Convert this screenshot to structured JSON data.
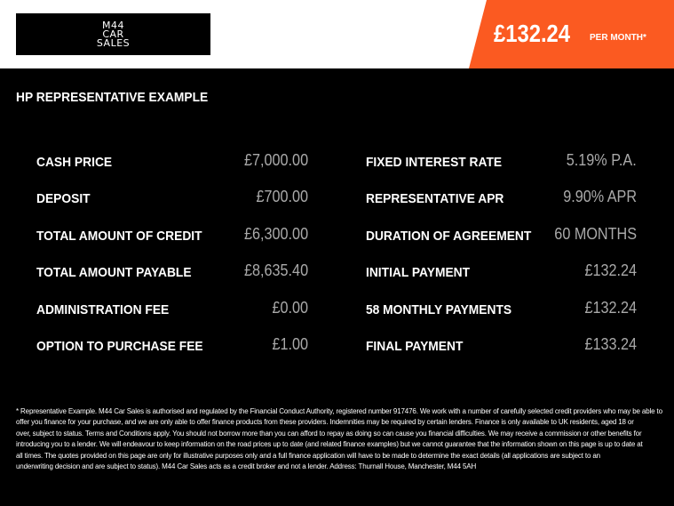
{
  "header": {
    "logo_lines": [
      "M44",
      "CAR",
      "SALES"
    ],
    "monthly_price": "£132.24",
    "per_month_label": "PER MONTH*",
    "accent_color": "#fb5a21"
  },
  "title": "HP REPRESENTATIVE EXAMPLE",
  "left": [
    {
      "label": "CASH PRICE",
      "value": "£7,000.00"
    },
    {
      "label": "DEPOSIT",
      "value": "£700.00"
    },
    {
      "label": "TOTAL AMOUNT OF CREDIT",
      "value": "£6,300.00"
    },
    {
      "label": "TOTAL AMOUNT PAYABLE",
      "value": "£8,635.40"
    },
    {
      "label": "ADMINISTRATION FEE",
      "value": "£0.00"
    },
    {
      "label": "OPTION TO PURCHASE FEE",
      "value": "£1.00"
    }
  ],
  "right": [
    {
      "label": "FIXED INTEREST RATE",
      "value": "5.19% P.A."
    },
    {
      "label": "REPRESENTATIVE APR",
      "value": "9.90% APR"
    },
    {
      "label": "DURATION OF AGREEMENT",
      "value": "60 MONTHS"
    },
    {
      "label": "INITIAL PAYMENT",
      "value": "£132.24"
    },
    {
      "label": "58 MONTHLY PAYMENTS",
      "value": "£132.24"
    },
    {
      "label": "FINAL PAYMENT",
      "value": "£133.24"
    }
  ],
  "disclaimer": [
    "* Representative Example. M44 Car Sales is authorised and regulated by the Financial Conduct Authority, registered number 917476. We work with a number of carefully selected credit providers who may be able to",
    "offer you finance for your purchase, and we are only able to offer finance products from these providers. Indemnities may be required by certain lenders. Finance is only available to UK residents, aged 18 or",
    "over, subject to status. Terms and Conditions apply. You should not borrow more than you can afford to repay as doing so can cause you financial difficulties. We may receive a commission or other benefits for",
    "introducing you to a lender. We will endeavour to keep information on the road prices up to date (and related finance examples) but we cannot guarantee that the information shown on this page is up to date at",
    "all times. The quotes provided on this page are only for illustrative purposes only and a full finance application will have to be made to determine the exact details (all applications are subject to an",
    "underwriting decision and are subject to status). M44 Car Sales acts as a credit broker and not a lender. Address: Thurnall House, Manchester, M44 5AH"
  ]
}
